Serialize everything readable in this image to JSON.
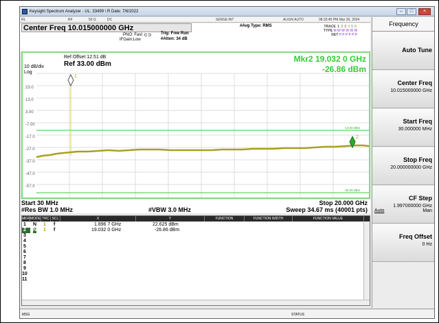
{
  "window": {
    "title": "Keysight Spectrum Analyzer - UL: 33499 \\ R Date: 7/6/2022"
  },
  "status_strip": {
    "mode": "RL",
    "rf": "RF",
    "impedance": "50 Ω",
    "coupling": "DC",
    "sense": "SENSE:INT",
    "align": "ALIGN AUTO",
    "datetime": "08:33:45 PM Mar 26, 2024"
  },
  "measurement_bar": {
    "center_freq": "Center Freq 10.015000000 GHz",
    "pno": "PNO: Fast",
    "ifgain": "IFGain:Low",
    "trig": "Trig: Free Run",
    "atten": "#Atten: 34 dB",
    "avg_type": "#Avg Type: RMS",
    "trace_label": "TRACE",
    "type_label": "TYPE",
    "det_label": "DET",
    "trace_values": [
      "1",
      "2",
      "3",
      "4",
      "5",
      "6"
    ],
    "type_values": "M W W W W W",
    "det_values": "P P P P P P"
  },
  "display": {
    "ref_offset": "Ref Offset 12.51 dB",
    "ref_level": "Ref 33.00 dBm",
    "scale": "10 dB/div",
    "scale_type": "Log",
    "y_ticks": [
      "23.0",
      "13.0",
      "3.00",
      "-7.00",
      "-17.0",
      "-27.0",
      "-37.0",
      "-47.0",
      "-57.0"
    ],
    "limit_line_1": "-13.00 dBm",
    "limit_line_2": "-30.00 dBm",
    "marker_readout_freq": "Mkr2 19.032 0 GHz",
    "marker_readout_amp": "-26.86 dBm",
    "marker1_label": "1",
    "marker2_label": "2",
    "trace_color": "#a8a020",
    "graticule_color": "#7fdc7f"
  },
  "below": {
    "start": "Start 30 MHz",
    "stop": "Stop 20.000 GHz",
    "rbw": "#Res BW 1.0 MHz",
    "vbw": "#VBW 3.0 MHz",
    "sweep": "Sweep 34.67 ms (40001 pts)"
  },
  "marker_table": {
    "headers": [
      "MKR",
      "MODE",
      "TRC",
      "SCL",
      "X",
      "Y",
      "FUNCTION",
      "FUNCTION WIDTH",
      "FUNCTION VALUE"
    ],
    "rows": [
      {
        "num": "1",
        "mode": "N",
        "trc": "1",
        "scl": "f",
        "x": "1.896 7 GHz",
        "y": "22.625 dBm"
      },
      {
        "num": "2",
        "mode": "N",
        "trc": "1",
        "scl": "f",
        "x": "19.032 0 GHz",
        "y": "-26.86 dBm"
      },
      {
        "num": "3"
      },
      {
        "num": "4"
      },
      {
        "num": "5"
      },
      {
        "num": "6"
      },
      {
        "num": "7"
      },
      {
        "num": "8"
      },
      {
        "num": "9"
      },
      {
        "num": "10"
      },
      {
        "num": "11"
      }
    ]
  },
  "bottom_bar": {
    "msg": "MSG",
    "status": "STATUS"
  },
  "softkeys": {
    "menu_title": "Frequency",
    "auto_tune": "Auto Tune",
    "center_freq_label": "Center Freq",
    "center_freq_value": "10.015000000 GHz",
    "start_freq_label": "Start Freq",
    "start_freq_value": "30.000000 MHz",
    "stop_freq_label": "Stop Freq",
    "stop_freq_value": "20.000000000 GHz",
    "cf_step_label": "CF Step",
    "cf_step_value": "1.997000000 GHz",
    "cf_step_auto": "Auto",
    "cf_step_man": "Man",
    "freq_offset_label": "Freq Offset",
    "freq_offset_value": "0 Hz"
  }
}
